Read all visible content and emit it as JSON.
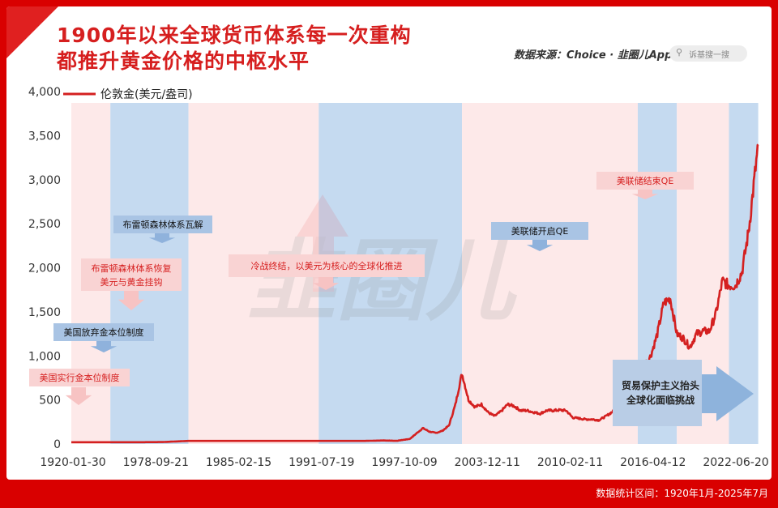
{
  "title_lines": [
    "1900年以来全球货币体系每一次重构",
    "都推升黄金价格的中枢水平"
  ],
  "source": "数据来源：Choice · 韭圈儿App",
  "search_placeholder": "诉基搜一搜",
  "watermark": "韭圈儿",
  "footer": "数据统计区间：1920年1月-2025年7月",
  "colors": {
    "line": "#d42020",
    "pink_band": "#fde9e9",
    "blue_band": "#c5daf0",
    "accent": "#d61f1f"
  },
  "chart_data": {
    "type": "line",
    "ylim": [
      0,
      4000
    ],
    "yticks": [
      "0",
      "500",
      "1,000",
      "1,500",
      "2,000",
      "2,500",
      "3,000",
      "3,500",
      "4,000"
    ],
    "xticks": [
      "1920-01-30",
      "1978-09-21",
      "1985-02-15",
      "1991-07-19",
      "1997-10-09",
      "2003-12-11",
      "2010-02-11",
      "2016-04-12",
      "2022-06-20"
    ],
    "legend": "伦敦金(美元/盎司)",
    "legend_position": "top-left",
    "x": [
      "1920",
      "1925",
      "1930",
      "1934",
      "1938",
      "1942",
      "1946",
      "1950",
      "1955",
      "1960",
      "1965",
      "1968",
      "1970",
      "1972",
      "1974",
      "1975",
      "1976",
      "1977",
      "1978",
      "1979",
      "1980",
      "1981",
      "1982",
      "1983",
      "1984",
      "1985",
      "1986",
      "1987",
      "1988",
      "1989",
      "1990",
      "1991",
      "1992",
      "1993",
      "1994",
      "1995",
      "1996",
      "1997",
      "1998",
      "1999",
      "2000",
      "2001",
      "2002",
      "2003",
      "2004",
      "2005",
      "2006",
      "2007",
      "2008",
      "2009",
      "2010",
      "2011",
      "2012",
      "2013",
      "2014",
      "2015",
      "2016",
      "2017",
      "2018",
      "2019",
      "2020",
      "2021",
      "2022",
      "2023",
      "2024",
      "2025-07"
    ],
    "values": [
      20,
      20,
      20,
      22,
      35,
      35,
      35,
      35,
      35,
      35,
      35,
      40,
      36,
      58,
      180,
      140,
      125,
      150,
      210,
      450,
      800,
      500,
      420,
      450,
      360,
      317,
      370,
      450,
      430,
      380,
      380,
      360,
      345,
      380,
      380,
      385,
      380,
      300,
      290,
      280,
      280,
      270,
      310,
      360,
      410,
      450,
      600,
      700,
      900,
      1000,
      1250,
      1600,
      1650,
      1250,
      1200,
      1100,
      1250,
      1280,
      1280,
      1480,
      1850,
      1800,
      1800,
      1950,
      2400,
      3400
    ],
    "bands": [
      {
        "type": "pink",
        "start": "1920",
        "end": "1926"
      },
      {
        "type": "blue",
        "start": "1926",
        "end": "1938"
      },
      {
        "type": "pink",
        "start": "1938",
        "end": "1958"
      },
      {
        "type": "blue",
        "start": "1958",
        "end": "1980"
      },
      {
        "type": "pink",
        "start": "1980",
        "end": "2007"
      },
      {
        "type": "blue",
        "start": "2007",
        "end": "2013"
      },
      {
        "type": "pink",
        "start": "2013",
        "end": "2021"
      },
      {
        "type": "blue",
        "start": "2021",
        "end": "2025-07"
      }
    ],
    "annotations": [
      {
        "text": "美国实行金本位制度",
        "style": "pink"
      },
      {
        "text": "美国放弃金本位制度",
        "style": "blue"
      },
      {
        "text": "布雷顿森林体系恢复",
        "text2": "美元与黄金挂钩",
        "style": "pink"
      },
      {
        "text": "布雷顿森林体系瓦解",
        "style": "blue"
      },
      {
        "text": "冷战终结，以美元为核心的全球化推进",
        "style": "pink"
      },
      {
        "text": "美联储开启QE",
        "style": "blue"
      },
      {
        "text": "美联储结束QE",
        "style": "pink"
      },
      {
        "text": "贸易保护主义抬头",
        "text2": "全球化面临挑战",
        "style": "blue-big"
      }
    ]
  }
}
